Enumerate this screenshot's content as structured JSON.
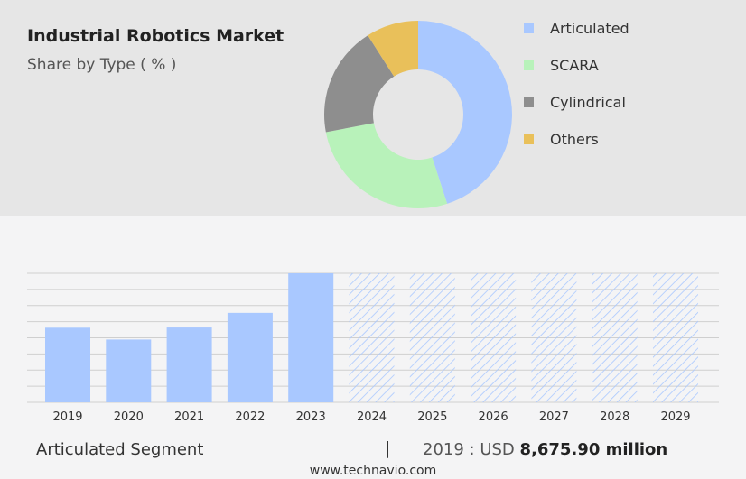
{
  "header": {
    "title": "Industrial Robotics Market",
    "subtitle": "Share by Type ( % )"
  },
  "colors": {
    "articulated": "#a9c8ff",
    "scara": "#b8f2ba",
    "cylindrical": "#8e8e8e",
    "others": "#e9c05a",
    "forecast_hatch": "#a9c8ff",
    "gridline": "#cfcfcf"
  },
  "chart_data": [
    {
      "type": "pie",
      "style": "donut",
      "title": "",
      "labels": [
        "Articulated",
        "SCARA",
        "Cylindrical",
        "Others"
      ],
      "values": [
        45,
        27,
        19,
        9
      ],
      "legend": "right"
    },
    {
      "type": "bar",
      "title": "",
      "categories": [
        "2019",
        "2020",
        "2021",
        "2022",
        "2023",
        "2024",
        "2025",
        "2026",
        "2027",
        "2028",
        "2029"
      ],
      "values": [
        8675.9,
        7300,
        8700,
        10400,
        15000,
        null,
        null,
        null,
        null,
        null,
        null
      ],
      "forecast_categories": [
        "2024",
        "2025",
        "2026",
        "2027",
        "2028",
        "2029"
      ],
      "xlabel": "",
      "ylabel": "",
      "ylim": [
        0,
        15000
      ],
      "grid": true
    }
  ],
  "footer": {
    "segment_label": "Articulated Segment",
    "separator": "|",
    "value_prefix": "2019 : USD",
    "value_text": "8,675.90 million"
  },
  "website": "www.technavio.com"
}
